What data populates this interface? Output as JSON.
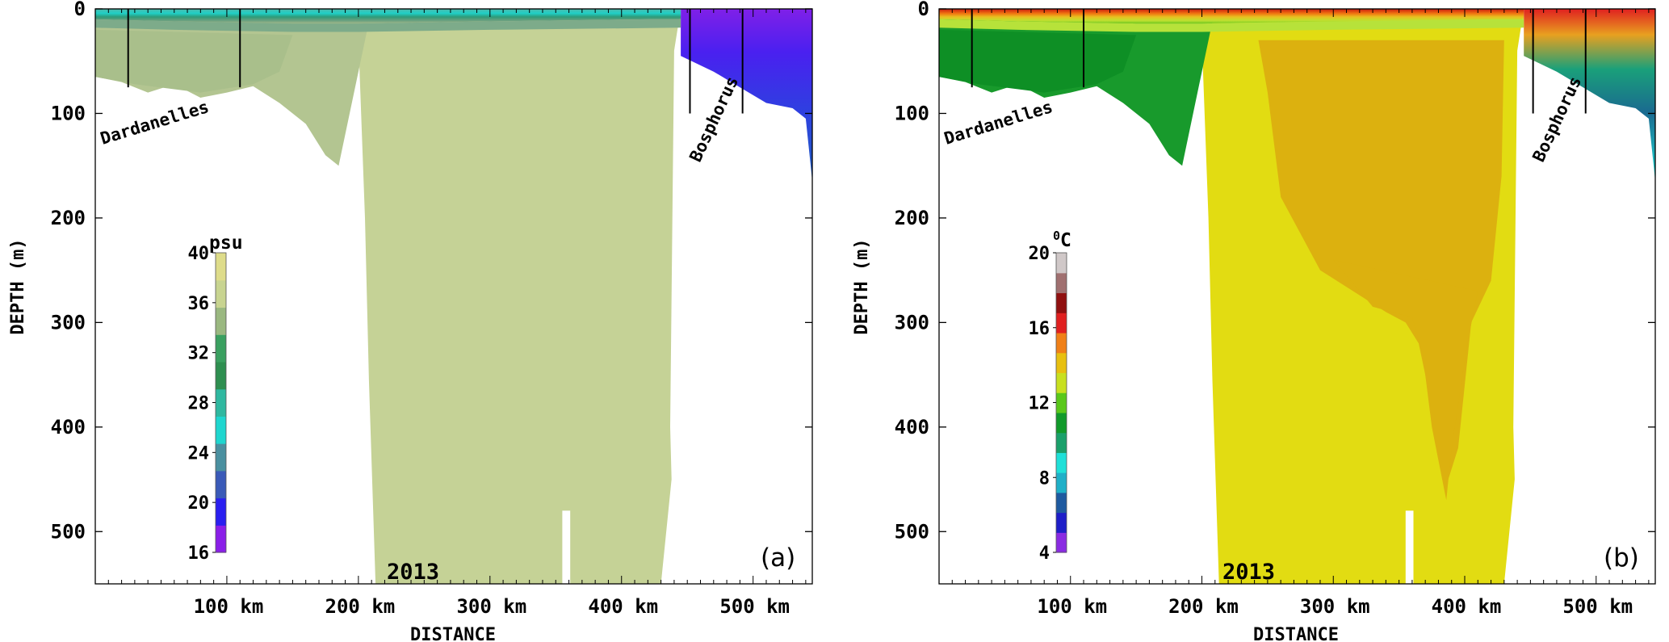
{
  "chart_data": [
    {
      "panel": "(a)",
      "type": "heatmap",
      "year": "2013",
      "ylabel": "DEPTH (m)",
      "xlabel": "DISTANCE",
      "ylim": [
        0,
        550
      ],
      "xlim": [
        0,
        545
      ],
      "y_ticks": [
        0,
        100,
        200,
        300,
        400,
        500
      ],
      "x_ticks": [
        100,
        200,
        300,
        400,
        500
      ],
      "x_tick_labels": [
        "100 km",
        "200 km",
        "300 km",
        "400 km",
        "500 km"
      ],
      "y_tick_labels": [
        "0",
        "100",
        "200",
        "300",
        "400",
        "500"
      ],
      "colorbar": {
        "unit": "psu",
        "range": [
          16,
          40
        ],
        "tick_values": [
          16,
          20,
          24,
          28,
          32,
          36,
          40
        ],
        "tick_labels": [
          "16",
          "20",
          "24",
          "28",
          "32",
          "36",
          "40"
        ],
        "stops": [
          "#8a1fe8",
          "#2a1ff0",
          "#3a5ab8",
          "#4a90a0",
          "#1fd6cf",
          "#2fb8a0",
          "#2e8f50",
          "#3aa060",
          "#9ab880",
          "#c8d490",
          "#dedc8a"
        ]
      },
      "straits": [
        {
          "name": "Dardanelles",
          "x": [
            25,
            110
          ]
        },
        {
          "name": "Bosphorus",
          "x": [
            452,
            492
          ]
        }
      ],
      "field": {
        "surface_value": 24,
        "deep_value": 38.9,
        "black_sea_surface": 17.5,
        "black_sea_deep": 22
      }
    },
    {
      "panel": "(b)",
      "type": "heatmap",
      "year": "2013",
      "ylabel": "DEPTH (m)",
      "xlabel": "DISTANCE",
      "ylim": [
        0,
        550
      ],
      "xlim": [
        0,
        545
      ],
      "y_ticks": [
        0,
        100,
        200,
        300,
        400,
        500
      ],
      "x_ticks": [
        100,
        200,
        300,
        400,
        500
      ],
      "x_tick_labels": [
        "100 km",
        "200 km",
        "300 km",
        "400 km",
        "500 km"
      ],
      "y_tick_labels": [
        "0",
        "100",
        "200",
        "300",
        "400",
        "500"
      ],
      "colorbar": {
        "unit": "0C",
        "unit_base": "C",
        "unit_sup": "0",
        "range": [
          4,
          20
        ],
        "tick_values": [
          4,
          8,
          12,
          16,
          20
        ],
        "tick_labels": [
          "4",
          "8",
          "12",
          "16",
          "20"
        ],
        "stops": [
          "#8a2be2",
          "#1e1ec8",
          "#1e5aa0",
          "#1fb0c8",
          "#1fe0d8",
          "#1aa06a",
          "#119a2a",
          "#5ac81a",
          "#c8e020",
          "#e8c010",
          "#f08018",
          "#e02020",
          "#901010",
          "#a07070",
          "#d0c8c8"
        ]
      },
      "straits": [
        {
          "name": "Dardanelles",
          "x": [
            25,
            110
          ]
        },
        {
          "name": "Bosphorus",
          "x": [
            452,
            492
          ]
        }
      ],
      "field": {
        "surface_value": 17,
        "intermediate_value": 14.8,
        "deep_value": 14.2,
        "black_sea_cold_layer": 7.5
      }
    }
  ]
}
